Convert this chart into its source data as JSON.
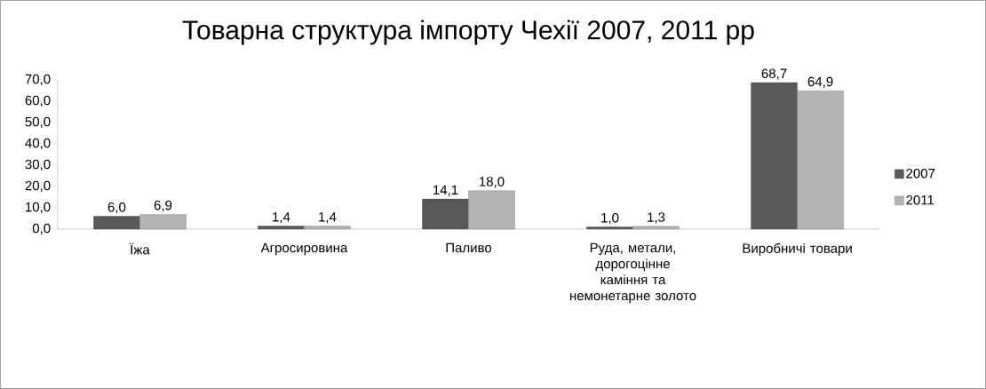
{
  "chart_data": {
    "type": "bar",
    "title": "Товарна структура імпорту Чехії 2007, 2011 рр",
    "categories": [
      "Їжа",
      "Агросировина",
      "Паливо",
      "Руда, метали, дорогоцінне каміння та немонетарне золото",
      "Виробничі товари"
    ],
    "series": [
      {
        "name": "2007",
        "color": "#595959",
        "values": [
          6.0,
          1.4,
          14.1,
          1.0,
          68.7
        ],
        "value_labels": [
          "6,0",
          "1,4",
          "14,1",
          "1,0",
          "68,7"
        ]
      },
      {
        "name": "2011",
        "color": "#b3b3b3",
        "values": [
          6.9,
          1.4,
          18.0,
          1.3,
          64.9
        ],
        "value_labels": [
          "6,9",
          "1,4",
          "18,0",
          "1,3",
          "64,9"
        ]
      }
    ],
    "ylim": [
      0,
      70
    ],
    "yticks": [
      {
        "value": 0,
        "label": "0,0"
      },
      {
        "value": 10,
        "label": "10,0"
      },
      {
        "value": 20,
        "label": "20,0"
      },
      {
        "value": 30,
        "label": "30,0"
      },
      {
        "value": 40,
        "label": "40,0"
      },
      {
        "value": 50,
        "label": "50,0"
      },
      {
        "value": 60,
        "label": "60,0"
      },
      {
        "value": 70,
        "label": "70,0"
      }
    ],
    "legend": "right"
  }
}
